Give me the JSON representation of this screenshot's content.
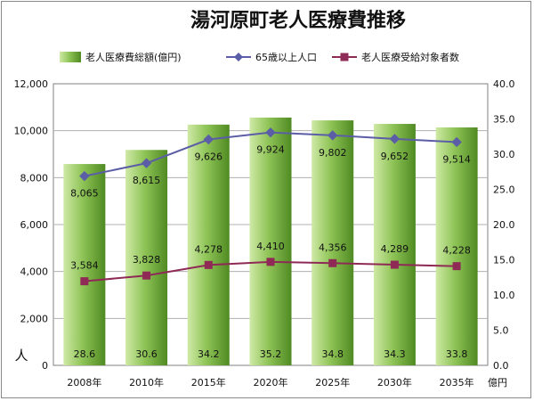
{
  "chart_data": {
    "type": "bar",
    "title": "湯河原町老人医療費推移",
    "categories": [
      "2008年",
      "2010年",
      "2015年",
      "2020年",
      "2025年",
      "2030年",
      "2035年"
    ],
    "series": [
      {
        "name": "老人医療費総額(億円)",
        "type": "bar",
        "axis": "right",
        "values": [
          28.6,
          30.6,
          34.2,
          35.2,
          34.8,
          34.3,
          33.8
        ]
      },
      {
        "name": "65歳以上人口",
        "type": "line",
        "axis": "left",
        "marker": "diamond",
        "values": [
          8065,
          8615,
          9626,
          9924,
          9802,
          9652,
          9514
        ]
      },
      {
        "name": "老人医療受給対象者数",
        "type": "line",
        "axis": "left",
        "marker": "square",
        "values": [
          3584,
          3828,
          4278,
          4410,
          4356,
          4289,
          4228
        ]
      }
    ],
    "left_axis": {
      "unit": "人",
      "min": 0,
      "max": 12000,
      "ticks": [
        "0",
        "2,000",
        "4,000",
        "6,000",
        "8,000",
        "10,000",
        "12,000"
      ]
    },
    "right_axis": {
      "unit": "億円",
      "min": 0,
      "max": 40,
      "ticks": [
        "0.0",
        "5.0",
        "10.0",
        "15.0",
        "20.0",
        "25.0",
        "30.0",
        "35.0",
        "40.0"
      ]
    },
    "grid": true,
    "legend": "top",
    "colors": {
      "bar_light": "#c8e6a0",
      "bar_dark": "#5a8e2a",
      "pop_line": "#5b5ea6",
      "recip_line": "#8e2a55",
      "grid": "#b0b0b0",
      "plot_border": "#808080"
    }
  }
}
